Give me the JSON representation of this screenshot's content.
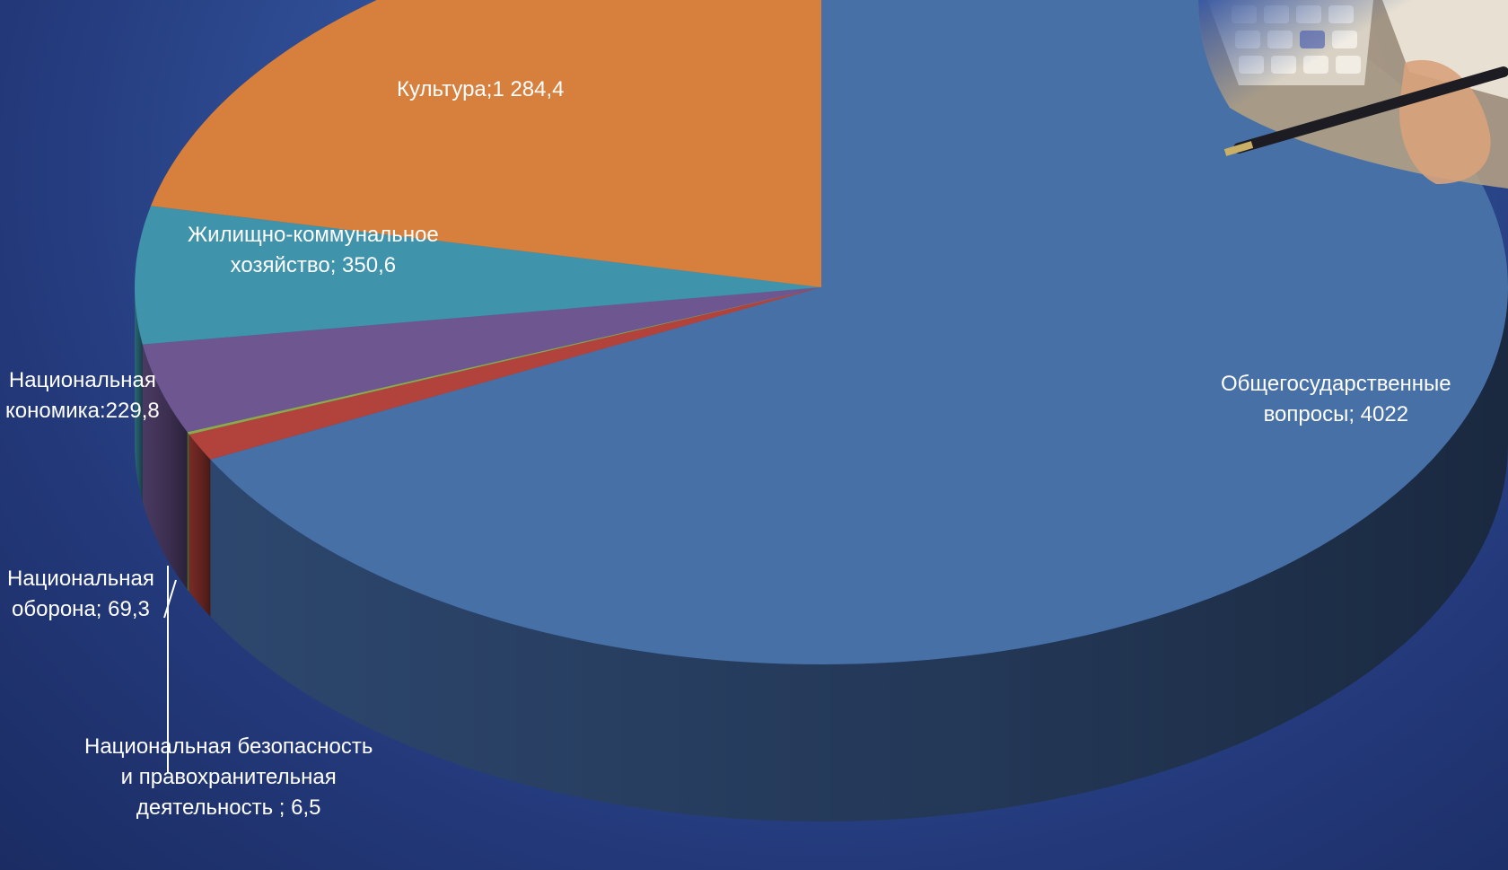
{
  "chart_data": {
    "type": "pie",
    "style": "3d",
    "title": "",
    "slices": [
      {
        "name": "Общегосударственные вопросы",
        "value": 4022,
        "color": "#4670a6",
        "side_color": "#2f4a73",
        "label_lines": [
          "Общегосударственные",
          "вопросы; 4022"
        ]
      },
      {
        "name": "Национальная оборона",
        "value": 69.3,
        "color": "#b2433c",
        "side_color": "#7f2d28",
        "label_lines": [
          "Национальная",
          "оборона; 69,3"
        ]
      },
      {
        "name": "Национальная безопасность и правоохранительная деятельность",
        "value": 6.5,
        "color": "#8fa84a",
        "side_color": "#667a33",
        "label_lines": [
          "Национальная безопасность",
          "и правохранительная",
          "деятельность ; 6,5"
        ]
      },
      {
        "name": "Национальная экономика",
        "value": 229.8,
        "color": "#6e5690",
        "side_color": "#4e3d68",
        "label_lines": [
          "Национальная",
          "кономика:229,8"
        ]
      },
      {
        "name": "Жилищно-коммунальное хозяйство",
        "value": 350.6,
        "color": "#3f93ab",
        "side_color": "#2c6a7c",
        "label_lines": [
          "Жилищно-коммунальное",
          "хозяйство; 350,6"
        ]
      },
      {
        "name": "Культура",
        "value": 1284.4,
        "color": "#d77f3c",
        "side_color": "#9c5b2a",
        "label_lines": [
          "Культура;1 284,4"
        ]
      }
    ],
    "legend": "none",
    "labels": "outside-and-on-slices"
  },
  "decoration": {
    "corner_image": "calculator-and-pen-photo"
  }
}
